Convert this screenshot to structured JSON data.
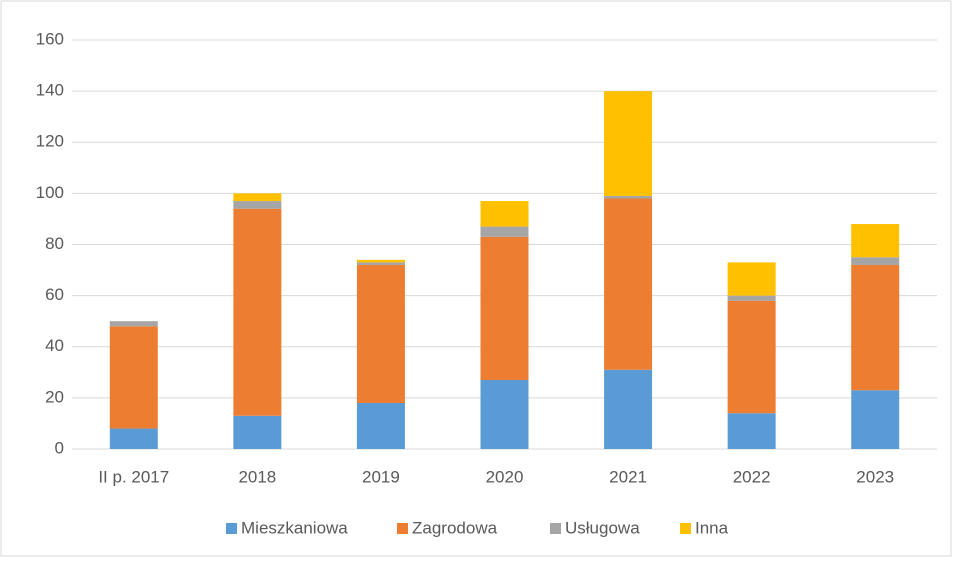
{
  "chart_data": {
    "type": "bar",
    "stacked": true,
    "categories": [
      "II p. 2017",
      "2018",
      "2019",
      "2020",
      "2021",
      "2022",
      "2023"
    ],
    "series": [
      {
        "name": "Mieszkaniowa",
        "color": "#5b9bd5",
        "values": [
          8,
          13,
          18,
          27,
          31,
          14,
          23
        ]
      },
      {
        "name": "Zagrodowa",
        "color": "#ed7d31",
        "values": [
          40,
          81,
          54,
          56,
          67,
          44,
          49
        ]
      },
      {
        "name": "Usługowa",
        "color": "#a5a5a5",
        "values": [
          2,
          3,
          1,
          4,
          1,
          2,
          3
        ]
      },
      {
        "name": "Inna",
        "color": "#ffc000",
        "values": [
          0,
          3,
          1,
          10,
          41,
          13,
          13
        ]
      }
    ],
    "ylim": [
      0,
      160
    ],
    "yticks": [
      0,
      20,
      40,
      60,
      80,
      100,
      120,
      140,
      160
    ],
    "grid": true,
    "legend": "bottom"
  }
}
